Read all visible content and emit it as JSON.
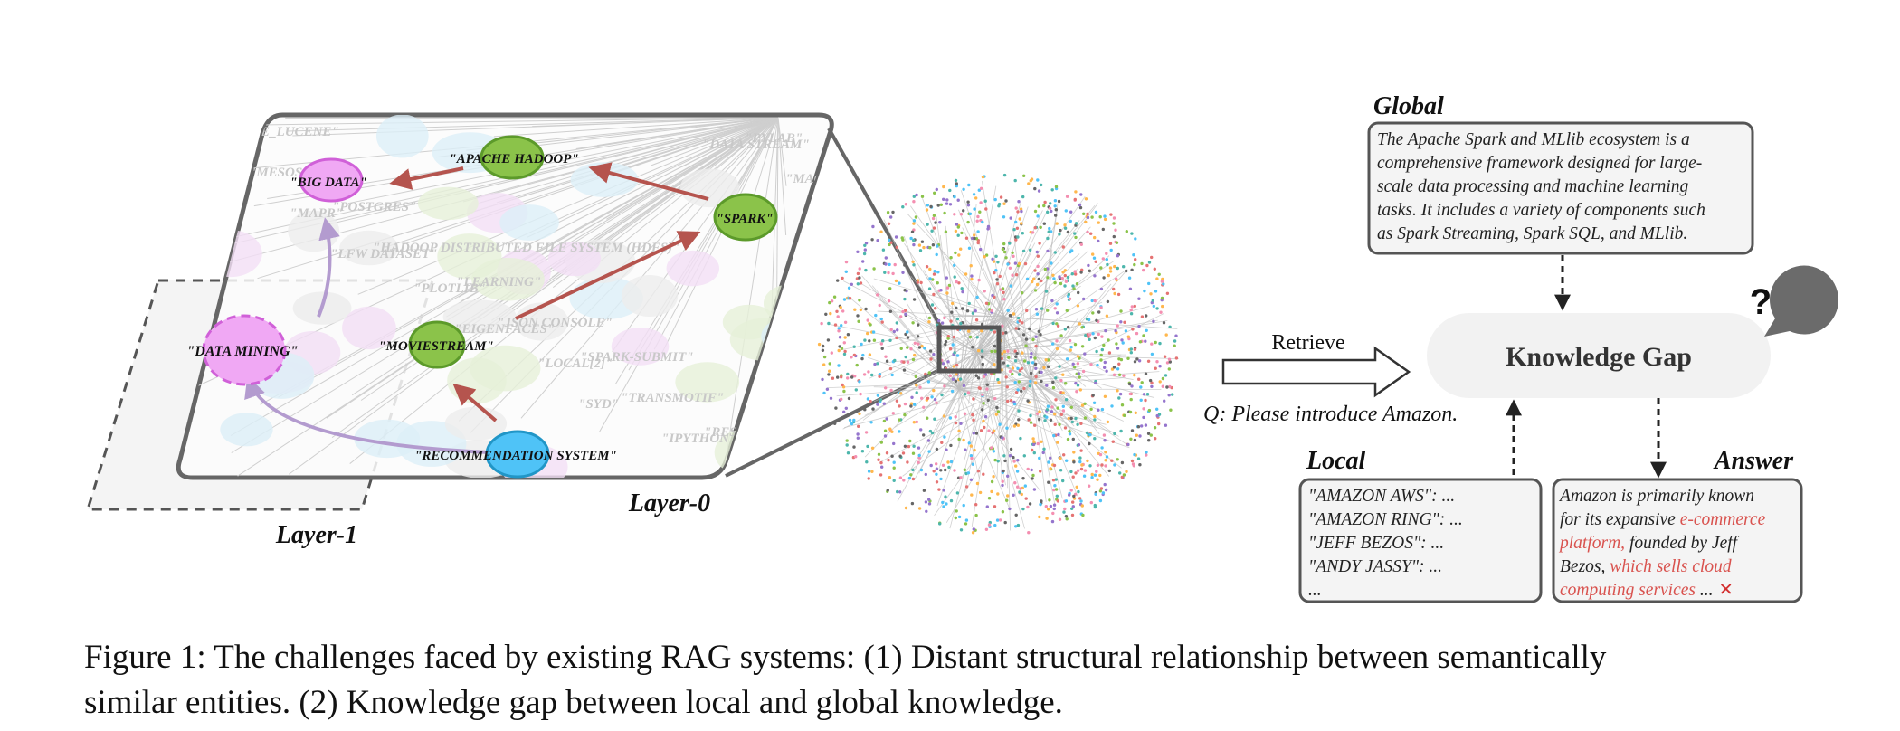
{
  "figure": {
    "layer0_label": "Layer-0",
    "layer1_label": "Layer-1",
    "nodes": {
      "big_data": "\"BIG DATA\"",
      "apache_hadoop": "\"APACHE HADOOP\"",
      "spark": "\"SPARK\"",
      "data_mining": "\"DATA MINING\"",
      "moviestream": "\"MOVIESTREAM\"",
      "recommendation_system": "\"RECOMMENDATION SYSTEM\""
    },
    "background_labels": [
      "\"APACHE_LUCENE\"",
      "\"POSTGRES\"",
      "\"LEARNING\"",
      "\"SPARK-SUBMIT\"",
      "\"RESILIENT DISTRIBUTED DATASET (RDD)\"",
      "\"MESOS\"",
      "\"HADOOP DISTRIBUTED FILE SYSTEM (HDFS)\"",
      "\"JSON CONSOLE\"",
      "\"TRANSMOTIF\"",
      "\"PYLAB\"",
      "\"MAPR\"",
      "\"PLOTLIB\"",
      "\"LOCAL[2]\"",
      "\"IPYTHON NOTEBOOK\"",
      "\"MACHINE LEARNING\"",
      "\"LFW DATASET\"",
      "\"EIGENFACES\"",
      "\"SYD\"",
      "\"DATA STREAM\""
    ],
    "retrieve_label": "Retrieve",
    "query": "Q: Please introduce Amazon.",
    "global": {
      "title": "Global",
      "lines": [
        "The Apache Spark and MLlib ecosystem is a",
        "comprehensive framework designed for large-",
        "scale data processing and machine learning",
        "tasks. It includes a variety of components such",
        "as Spark Streaming, Spark SQL, and MLlib."
      ]
    },
    "knowledge_gap": "Knowledge Gap",
    "question_mark": "?",
    "local": {
      "title": "Local",
      "lines": [
        "\"AMAZON AWS\": ...",
        "\"AMAZON RING\": ...",
        "\"JEFF BEZOS\": ...",
        "\"ANDY JASSY\": ...",
        "..."
      ]
    },
    "answer": {
      "title": "Answer",
      "line1": "Amazon is primarily known",
      "line2_plain": "for its expansive ",
      "line2_red": "e-commerce",
      "line3_red": "platform,",
      "line3_plain": " founded by Jeff",
      "line4_plain": "Bezos, ",
      "line4_red": "which sells cloud",
      "line5_red": "computing services",
      "line5_plain": " ...",
      "wrong_mark": "✕"
    },
    "colors": {
      "accent_red": "#d9534f",
      "arrow_red": "#b5544e",
      "green_node": "#8bc34a",
      "pink_node": "#f0a8f4",
      "blue_node": "#4fc3f7",
      "purple_arrow": "#b39bcf"
    }
  },
  "caption": {
    "line1": "Figure 1: The challenges faced by existing RAG systems: (1) Distant structural relationship between semantically",
    "line2": "similar entities. (2) Knowledge gap between local and global knowledge."
  }
}
